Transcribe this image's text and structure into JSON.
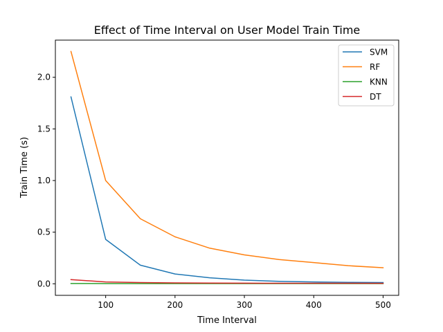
{
  "chart_data": {
    "type": "line",
    "title": "Effect of Time Interval on User Model Train Time",
    "xlabel": "Time Interval",
    "ylabel": "Train Time (s)",
    "xlim": [
      27.5,
      522.5
    ],
    "ylim": [
      -0.112,
      2.36
    ],
    "xticks": [
      100,
      200,
      300,
      400,
      500
    ],
    "yticks": [
      0.0,
      0.5,
      1.0,
      1.5,
      2.0
    ],
    "xtick_labels": [
      "100",
      "200",
      "300",
      "400",
      "500"
    ],
    "ytick_labels": [
      "0.0",
      "0.5",
      "1.0",
      "1.5",
      "2.0"
    ],
    "grid": false,
    "legend_position": "top-right",
    "x": [
      50,
      100,
      150,
      200,
      250,
      300,
      350,
      400,
      450,
      500
    ],
    "series": [
      {
        "name": "SVM",
        "color": "#1f77b4",
        "values": [
          1.81,
          0.43,
          0.18,
          0.095,
          0.058,
          0.035,
          0.024,
          0.018,
          0.014,
          0.012
        ]
      },
      {
        "name": "RF",
        "color": "#ff7f0e",
        "values": [
          2.25,
          1.0,
          0.63,
          0.455,
          0.345,
          0.28,
          0.235,
          0.205,
          0.175,
          0.155
        ]
      },
      {
        "name": "KNN",
        "color": "#2ca02c",
        "values": [
          0.003,
          0.002,
          0.002,
          0.002,
          0.002,
          0.002,
          0.002,
          0.002,
          0.002,
          0.002
        ]
      },
      {
        "name": "DT",
        "color": "#d62728",
        "values": [
          0.04,
          0.018,
          0.012,
          0.009,
          0.007,
          0.006,
          0.005,
          0.005,
          0.005,
          0.004
        ]
      }
    ]
  }
}
